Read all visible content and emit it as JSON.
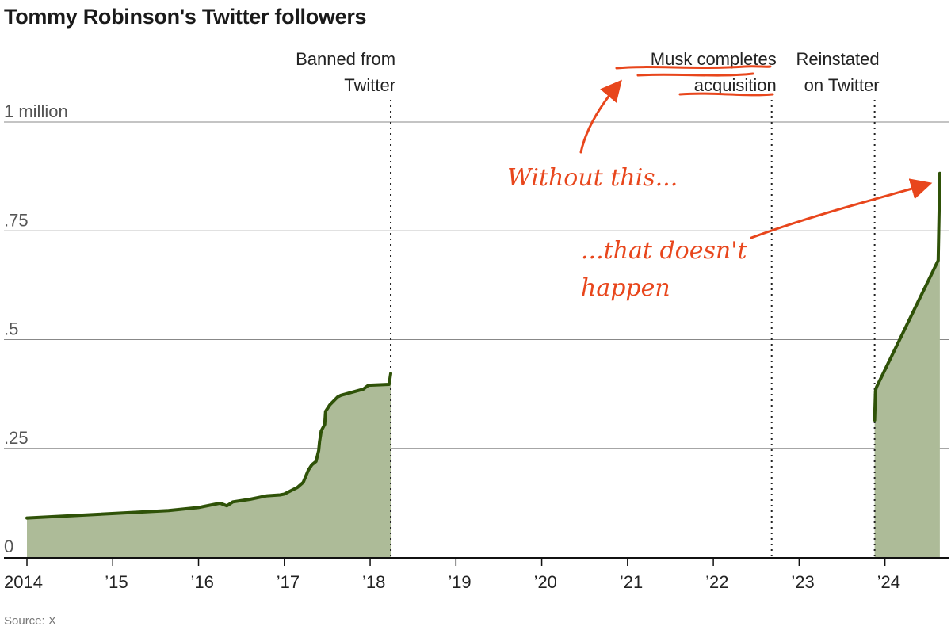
{
  "title": "Tommy Robinson's Twitter followers",
  "source": "Source: X",
  "colors": {
    "line": "#2f5208",
    "area": "#adbb98",
    "annotation": "#e8461c",
    "grid": "#888888"
  },
  "annotations": {
    "without_this": "Without this...",
    "that_doesnt": "...that doesn't",
    "happen": "happen"
  },
  "chart_data": {
    "type": "area",
    "title": "Tommy Robinson's Twitter followers",
    "xlabel": "",
    "ylabel": "",
    "xlim": [
      2014,
      2024.65
    ],
    "ylim": [
      0,
      1.0
    ],
    "grid": true,
    "y_ticks": [
      {
        "value": 0,
        "label": "0"
      },
      {
        "value": 0.25,
        "label": ".25"
      },
      {
        "value": 0.5,
        "label": ".5"
      },
      {
        "value": 0.75,
        "label": ".75"
      },
      {
        "value": 1.0,
        "label": "1 million"
      }
    ],
    "x_ticks": [
      {
        "value": 2014,
        "label": "2014"
      },
      {
        "value": 2015,
        "label": "’15"
      },
      {
        "value": 2016,
        "label": "’16"
      },
      {
        "value": 2017,
        "label": "’17"
      },
      {
        "value": 2018,
        "label": "’18"
      },
      {
        "value": 2019,
        "label": "’19"
      },
      {
        "value": 2020,
        "label": "’20"
      },
      {
        "value": 2021,
        "label": "’21"
      },
      {
        "value": 2022,
        "label": "’22"
      },
      {
        "value": 2023,
        "label": "’23"
      },
      {
        "value": 2024,
        "label": "’24"
      }
    ],
    "events": [
      {
        "x": 2018.24,
        "lines": [
          "Banned from",
          "Twitter"
        ]
      },
      {
        "x": 2022.68,
        "lines": [
          "Musk completes",
          "acquisition"
        ]
      },
      {
        "x": 2023.88,
        "lines": [
          "Reinstated",
          "on Twitter"
        ]
      }
    ],
    "segments": [
      {
        "points": [
          [
            2014.0,
            0.09
          ],
          [
            2015.65,
            0.107
          ],
          [
            2016.0,
            0.114
          ],
          [
            2016.25,
            0.124
          ],
          [
            2016.33,
            0.118
          ],
          [
            2016.4,
            0.127
          ],
          [
            2016.6,
            0.133
          ],
          [
            2016.8,
            0.141
          ],
          [
            2016.95,
            0.143
          ],
          [
            2017.0,
            0.145
          ],
          [
            2017.05,
            0.15
          ],
          [
            2017.15,
            0.16
          ],
          [
            2017.22,
            0.172
          ],
          [
            2017.28,
            0.2
          ],
          [
            2017.32,
            0.212
          ],
          [
            2017.37,
            0.22
          ],
          [
            2017.4,
            0.245
          ],
          [
            2017.41,
            0.265
          ],
          [
            2017.43,
            0.29
          ],
          [
            2017.47,
            0.305
          ],
          [
            2017.48,
            0.335
          ],
          [
            2017.53,
            0.35
          ],
          [
            2017.58,
            0.36
          ],
          [
            2017.62,
            0.368
          ],
          [
            2017.66,
            0.372
          ],
          [
            2017.92,
            0.386
          ],
          [
            2017.98,
            0.395
          ],
          [
            2018.22,
            0.397
          ],
          [
            2018.24,
            0.422
          ]
        ]
      },
      {
        "points": [
          [
            2023.88,
            0.315
          ],
          [
            2023.89,
            0.382
          ],
          [
            2023.9,
            0.39
          ],
          [
            2024.62,
            0.682
          ],
          [
            2024.64,
            0.882
          ]
        ]
      }
    ]
  }
}
